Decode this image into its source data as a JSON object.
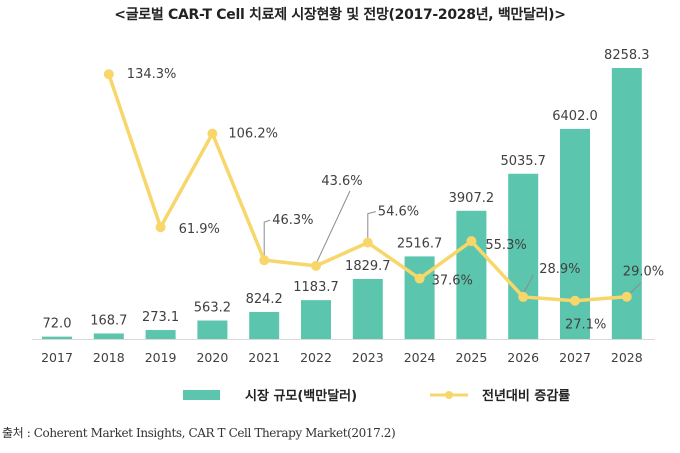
{
  "chart_data": {
    "type": "bar",
    "title": "<글로벌 CAR-T Cell 치료제 시장현황 및 전망(2017-2028년, 백만달러)>",
    "xlabel": "",
    "ylabel": "",
    "categories": [
      "2017",
      "2018",
      "2019",
      "2020",
      "2021",
      "2022",
      "2023",
      "2024",
      "2025",
      "2026",
      "2027",
      "2028"
    ],
    "series": [
      {
        "name": "시장 규모(백만달러)",
        "type": "bar",
        "color": "#5bc5ae",
        "values": [
          72.0,
          168.7,
          273.1,
          563.2,
          824.2,
          1183.7,
          1829.7,
          2516.7,
          3907.2,
          5035.7,
          6402.0,
          8258.3
        ],
        "labels": [
          "72.0",
          "168.7",
          "273.1",
          "563.2",
          "824.2",
          "1183.7",
          "1829.7",
          "2516.7",
          "3907.2",
          "5035.7",
          "6402.0",
          "8258.3"
        ]
      },
      {
        "name": "전년대비 증감률",
        "type": "line",
        "color": "#f7d66a",
        "values": [
          null,
          134.3,
          61.9,
          106.2,
          46.3,
          43.6,
          54.6,
          37.6,
          55.3,
          28.9,
          27.1,
          29.0
        ],
        "labels": [
          "",
          "134.3%",
          "61.9%",
          "106.2%",
          "46.3%",
          "43.6%",
          "54.6%",
          "37.6%",
          "55.3%",
          "28.9%",
          "27.1%",
          "29.0%"
        ]
      }
    ],
    "ylim_bar": [
      0,
      8258.3
    ],
    "ylim_line": [
      0,
      134.3
    ],
    "grid": false,
    "legend": "bottom"
  },
  "source": "출처 : Coherent Market Insights, CAR T Cell Therapy Market(2017.2)"
}
